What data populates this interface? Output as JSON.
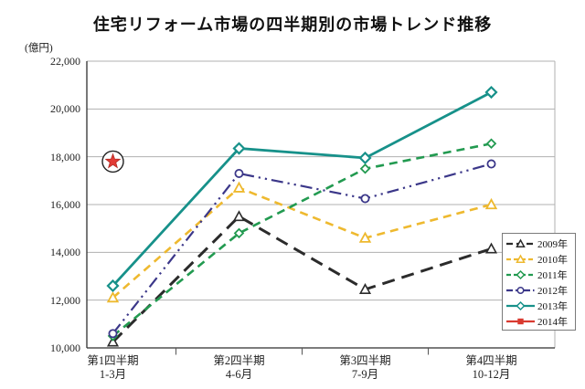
{
  "title": "住宅リフォーム市場の四半期別の市場トレンド推移",
  "chart_data": {
    "type": "line",
    "title": "住宅リフォーム市場の四半期別の市場トレンド推移",
    "ylabel": "(億円)",
    "grid": true,
    "legend_position": "right-bottom",
    "categories": [
      {
        "line1": "第1四半期",
        "line2": "1-3月"
      },
      {
        "line1": "第2四半期",
        "line2": "4-6月"
      },
      {
        "line1": "第3四半期",
        "line2": "7-9月"
      },
      {
        "line1": "第4四半期",
        "line2": "10-12月"
      }
    ],
    "y_axis": {
      "min": 10000,
      "max": 22000,
      "step": 2000,
      "tick_labels": [
        "10,000",
        "12,000",
        "14,000",
        "16,000",
        "18,000",
        "20,000",
        "22,000"
      ]
    },
    "series": [
      {
        "name": "2009年",
        "color": "#2b2b2b",
        "line_style": "long-dash",
        "marker": "triangle-open",
        "values": [
          10250,
          15500,
          12450,
          14150
        ]
      },
      {
        "name": "2010年",
        "color": "#eeb92f",
        "line_style": "dash",
        "marker": "triangle-open",
        "values": [
          12100,
          16700,
          14600,
          16000
        ]
      },
      {
        "name": "2011年",
        "color": "#229a50",
        "line_style": "dash",
        "marker": "diamond-open",
        "values": [
          10500,
          14800,
          17500,
          18550
        ]
      },
      {
        "name": "2012年",
        "color": "#3b3789",
        "line_style": "dash-dot-dot",
        "marker": "circle-open",
        "values": [
          10600,
          17300,
          16250,
          17700
        ]
      },
      {
        "name": "2013年",
        "color": "#17918a",
        "line_style": "solid",
        "marker": "diamond-open",
        "values": [
          12600,
          18350,
          17950,
          20700
        ]
      },
      {
        "name": "2014年",
        "color": "#d93a30",
        "line_style": "solid",
        "marker": "square-filled",
        "values": [
          17800,
          null,
          null,
          null
        ]
      }
    ],
    "annotation": {
      "type": "star-in-circle",
      "series_index": 5,
      "category_index": 0,
      "value": 17800,
      "star_color": "#e23b35",
      "circle_stroke": "#222222"
    }
  }
}
